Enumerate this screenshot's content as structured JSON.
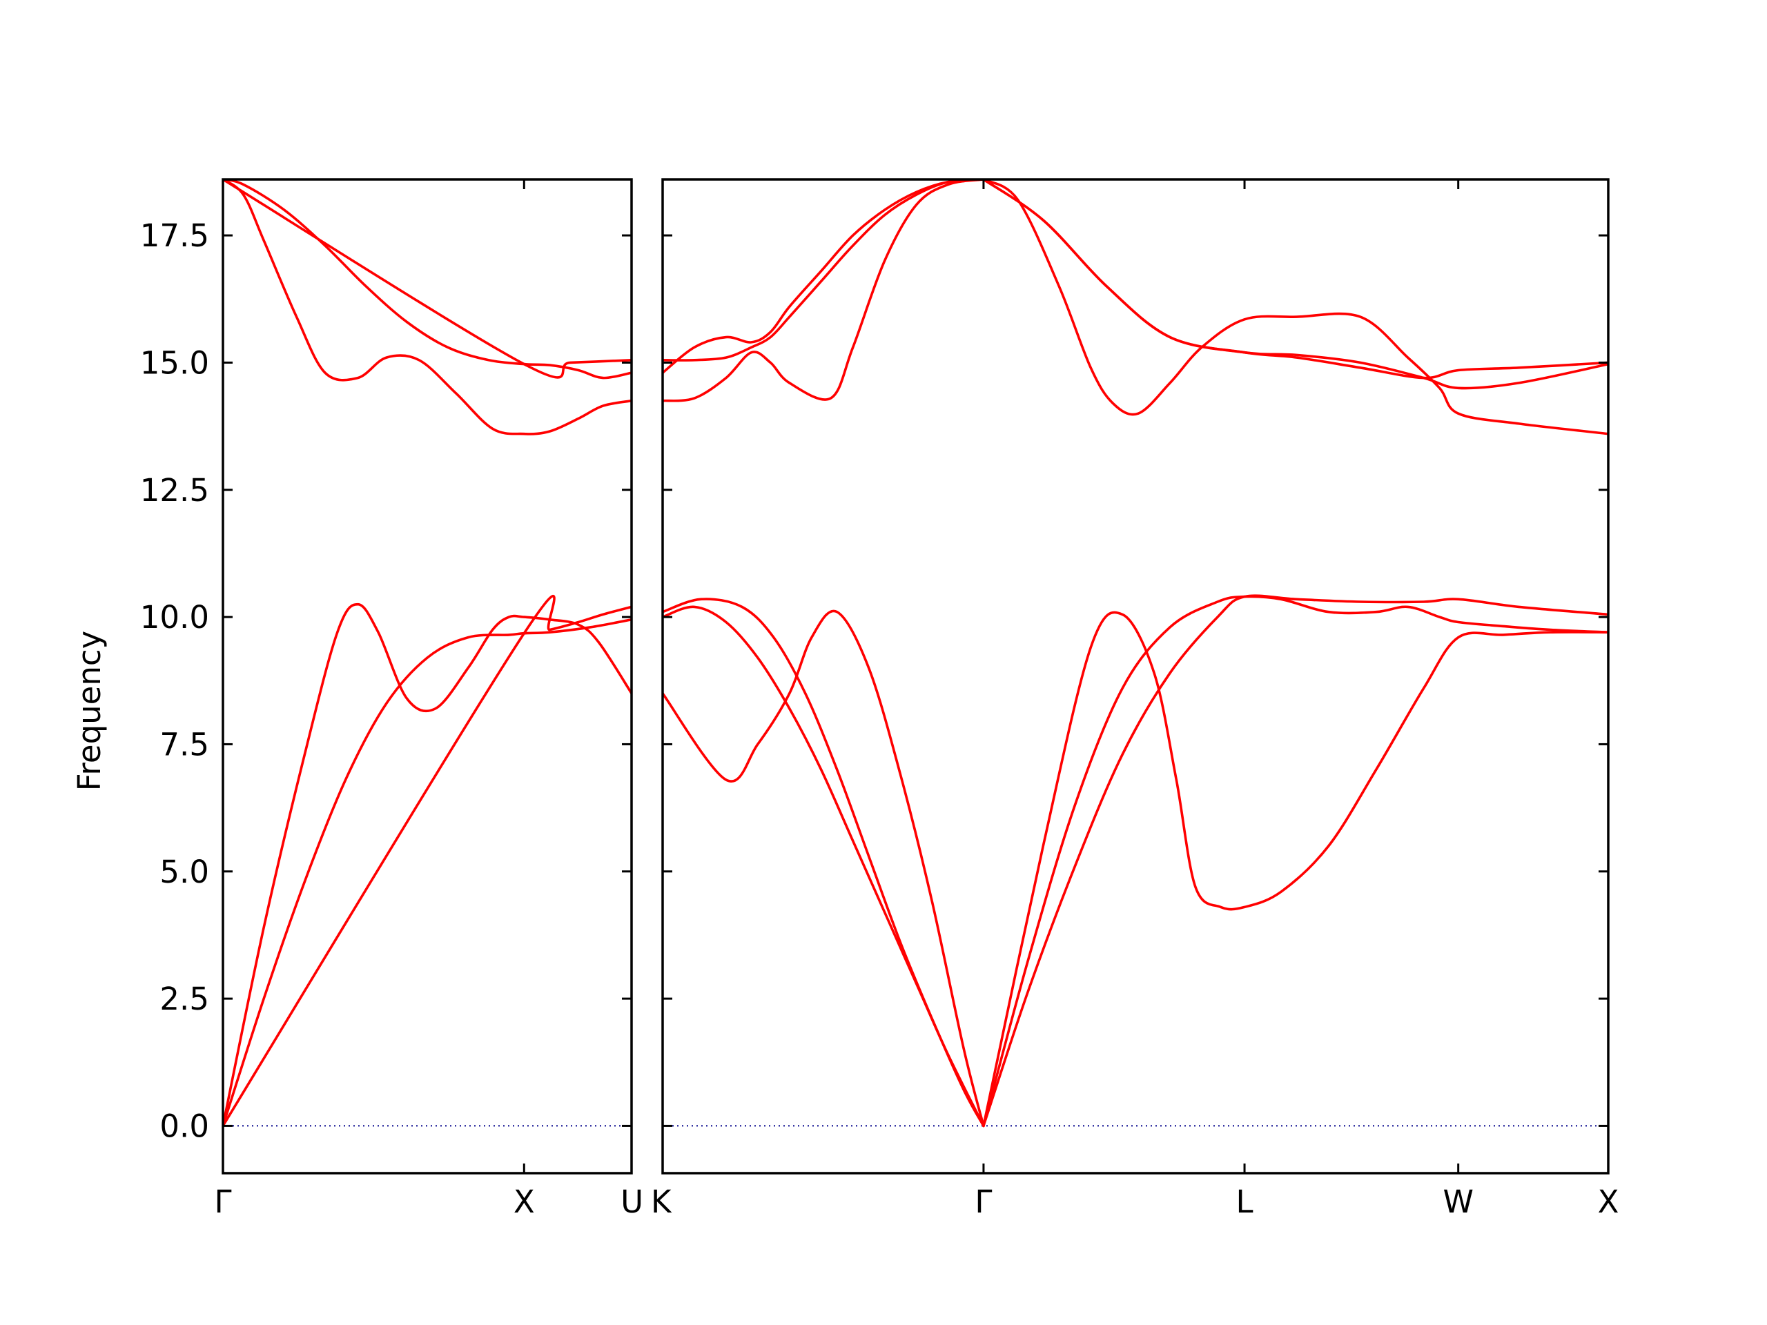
{
  "chart_data": {
    "type": "line",
    "title": "",
    "ylabel": "Frequency",
    "ylim": [
      -0.93,
      18.6
    ],
    "yticks": [
      0.0,
      2.5,
      5.0,
      7.5,
      10.0,
      12.5,
      15.0,
      17.5
    ],
    "ytick_labels": [
      "0.0",
      "2.5",
      "5.0",
      "7.5",
      "10.0",
      "12.5",
      "15.0",
      "17.5"
    ],
    "grid": false,
    "legend": "none",
    "colors": {
      "band": "#ff0000",
      "zero_line": "#00008b"
    },
    "panels": [
      {
        "name": "Γ-X-U",
        "xlim": [
          0,
          1.0
        ],
        "xticks": [
          0,
          0.737,
          1.0
        ],
        "xtick_labels": [
          "Γ",
          "X",
          "U"
        ],
        "series": [
          {
            "x": [
              0,
              0.1,
              0.2,
              0.28,
              0.33,
              0.38,
              0.45,
              0.52,
              0.6,
              0.66,
              0.7,
              0.737,
              0.8,
              0.87,
              0.92,
              1.0
            ],
            "y": [
              0.0,
              3.9,
              7.3,
              9.7,
              10.25,
              9.7,
              8.4,
              8.2,
              9.0,
              9.75,
              10.0,
              10.0,
              9.95,
              9.85,
              9.5,
              8.5
            ]
          },
          {
            "x": [
              0,
              0.1,
              0.2,
              0.3,
              0.4,
              0.5,
              0.6,
              0.7,
              0.737,
              0.8,
              0.9,
              1.0
            ],
            "y": [
              0.0,
              2.5,
              4.8,
              6.8,
              8.3,
              9.2,
              9.6,
              9.65,
              9.68,
              9.7,
              9.8,
              9.95
            ]
          },
          {
            "x": [
              0,
              0.737,
              0.8,
              0.87,
              0.93,
              1.0
            ],
            "y": [
              0.0,
              9.68,
              9.75,
              9.9,
              10.05,
              10.2
            ]
          },
          {
            "x": [
              0,
              0.05,
              0.1,
              0.18,
              0.25,
              0.33,
              0.4,
              0.48,
              0.57,
              0.66,
              0.737,
              0.8,
              0.87,
              0.93,
              1.0
            ],
            "y": [
              18.6,
              18.3,
              17.4,
              15.9,
              14.8,
              14.7,
              15.1,
              15.05,
              14.4,
              13.7,
              13.6,
              13.65,
              13.9,
              14.15,
              14.25
            ]
          },
          {
            "x": [
              0,
              0.05,
              0.15,
              0.25,
              0.35,
              0.45,
              0.55,
              0.65,
              0.737,
              0.8,
              0.87,
              0.93,
              1.0
            ],
            "y": [
              18.6,
              18.5,
              18.0,
              17.3,
              16.5,
              15.8,
              15.3,
              15.05,
              14.97,
              14.95,
              14.85,
              14.7,
              14.8
            ]
          },
          {
            "x": [
              0,
              0.737,
              0.85,
              1.0
            ],
            "y": [
              18.6,
              14.97,
              15.0,
              15.05
            ]
          }
        ]
      },
      {
        "name": "K-Γ-L-W-X",
        "xlim": [
          0,
          2.982
        ],
        "xticks": [
          0,
          1.012,
          1.835,
          2.509,
          2.982
        ],
        "xtick_labels": [
          "K",
          "Γ",
          "L",
          "W",
          "X"
        ],
        "series": [
          {
            "x": [
              0,
              0.1,
              0.2,
              0.3,
              0.4,
              0.5,
              0.6,
              0.7,
              0.8,
              0.9,
              1.012
            ],
            "y": [
              10.0,
              10.2,
              9.9,
              9.2,
              8.2,
              7.0,
              5.6,
              4.2,
              2.8,
              1.4,
              0.0
            ]
          },
          {
            "x": [
              0,
              0.12,
              0.25,
              0.35,
              0.45,
              0.55,
              0.65,
              0.75,
              0.85,
              0.95,
              1.012
            ],
            "y": [
              10.1,
              10.35,
              10.2,
              9.6,
              8.5,
              7.0,
              5.3,
              3.6,
              2.1,
              0.7,
              0.0
            ]
          },
          {
            "x": [
              0,
              0.2,
              0.3,
              0.4,
              0.47,
              0.55,
              0.65,
              0.75,
              0.85,
              0.95,
              1.012
            ],
            "y": [
              8.5,
              6.8,
              7.5,
              8.5,
              9.6,
              10.1,
              9.0,
              6.9,
              4.4,
              1.5,
              0.0
            ]
          },
          {
            "x": [
              1.012,
              1.15,
              1.3,
              1.45,
              1.6,
              1.75,
              1.835,
              1.95,
              2.1,
              2.25,
              2.35,
              2.45,
              2.509,
              2.65,
              2.8,
              2.982
            ],
            "y": [
              0.0,
              3.2,
              6.3,
              8.6,
              9.8,
              10.3,
              10.4,
              10.35,
              10.1,
              10.1,
              10.2,
              10.0,
              9.9,
              9.82,
              9.75,
              9.7
            ]
          },
          {
            "x": [
              1.012,
              1.15,
              1.3,
              1.45,
              1.6,
              1.75,
              1.835,
              2.0,
              2.2,
              2.4,
              2.509,
              2.7,
              2.982
            ],
            "y": [
              0.0,
              2.6,
              5.1,
              7.3,
              8.9,
              10.0,
              10.4,
              10.35,
              10.3,
              10.3,
              10.35,
              10.2,
              10.05
            ]
          },
          {
            "x": [
              1.012,
              1.2,
              1.35,
              1.45,
              1.55,
              1.62,
              1.68,
              1.76,
              1.835,
              1.95,
              2.1,
              2.25,
              2.4,
              2.509,
              2.65,
              2.8,
              2.982
            ],
            "y": [
              0.0,
              5.5,
              9.4,
              10.05,
              8.9,
              6.8,
              4.7,
              4.3,
              4.3,
              4.6,
              5.5,
              7.0,
              8.6,
              9.6,
              9.65,
              9.7,
              9.7
            ]
          },
          {
            "x": [
              0,
              0.1,
              0.2,
              0.28,
              0.34,
              0.4,
              0.5,
              0.6,
              0.7,
              0.8,
              0.9,
              1.012
            ],
            "y": [
              14.8,
              15.3,
              15.5,
              15.4,
              15.6,
              16.1,
              16.8,
              17.5,
              18.0,
              18.35,
              18.55,
              18.6
            ]
          },
          {
            "x": [
              0,
              0.1,
              0.2,
              0.28,
              0.34,
              0.4,
              0.5,
              0.6,
              0.7,
              0.8,
              0.9,
              1.012
            ],
            "y": [
              15.05,
              15.05,
              15.1,
              15.3,
              15.5,
              15.9,
              16.6,
              17.3,
              17.9,
              18.3,
              18.55,
              18.6
            ]
          },
          {
            "x": [
              0,
              0.1,
              0.2,
              0.28,
              0.34,
              0.4,
              0.53,
              0.6,
              0.7,
              0.8,
              0.9,
              1.012
            ],
            "y": [
              14.25,
              14.3,
              14.7,
              15.2,
              15.0,
              14.6,
              14.3,
              15.3,
              17.0,
              18.1,
              18.5,
              18.6
            ]
          },
          {
            "x": [
              1.012,
              1.12,
              1.25,
              1.35,
              1.42,
              1.5,
              1.6,
              1.7,
              1.835,
              2.0,
              2.2,
              2.35,
              2.45,
              2.509,
              2.7,
              2.982
            ],
            "y": [
              18.6,
              18.2,
              16.5,
              14.9,
              14.2,
              14.0,
              14.6,
              15.3,
              15.85,
              15.9,
              15.9,
              15.1,
              14.5,
              14.0,
              13.8,
              13.6
            ]
          },
          {
            "x": [
              1.012,
              1.2,
              1.4,
              1.6,
              1.835,
              2.0,
              2.2,
              2.4,
              2.509,
              2.7,
              2.982
            ],
            "y": [
              18.6,
              17.8,
              16.5,
              15.5,
              15.2,
              15.15,
              15.0,
              14.7,
              14.5,
              14.6,
              14.97
            ]
          },
          {
            "x": [
              1.012,
              1.2,
              1.4,
              1.6,
              1.835,
              2.0,
              2.2,
              2.4,
              2.509,
              2.7,
              2.982
            ],
            "y": [
              18.6,
              17.8,
              16.5,
              15.5,
              15.2,
              15.1,
              14.9,
              14.7,
              14.85,
              14.9,
              15.0
            ]
          }
        ]
      }
    ]
  }
}
